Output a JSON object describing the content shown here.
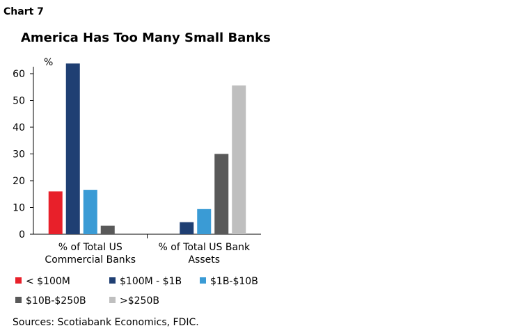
{
  "chart_label": "Chart 7",
  "chart_data": {
    "type": "bar",
    "title": "America Has Too Many Small Banks",
    "y_unit": "%",
    "categories": [
      "% of Total US Commercial Banks",
      "% of Total US Bank Assets"
    ],
    "series": [
      {
        "name": "< $100M",
        "color": "#e8202a",
        "values": [
          16,
          0
        ]
      },
      {
        "name": "$100M - $1B",
        "color": "#1f3f73",
        "values": [
          63.8,
          4.5
        ]
      },
      {
        "name": "$1B-$10B",
        "color": "#3a9bd5",
        "values": [
          16.6,
          9.4
        ]
      },
      {
        "name": "$10B-$250B",
        "color": "#595959",
        "values": [
          3.2,
          30
        ]
      },
      {
        "name": ">$250B",
        "color": "#bfbfbf",
        "values": [
          0,
          55.6
        ]
      }
    ],
    "ylim": [
      0,
      60
    ],
    "yticks": [
      0,
      10,
      20,
      30,
      40,
      50,
      60
    ],
    "grid": false
  },
  "source": "Sources: Scotiabank Economics, FDIC."
}
